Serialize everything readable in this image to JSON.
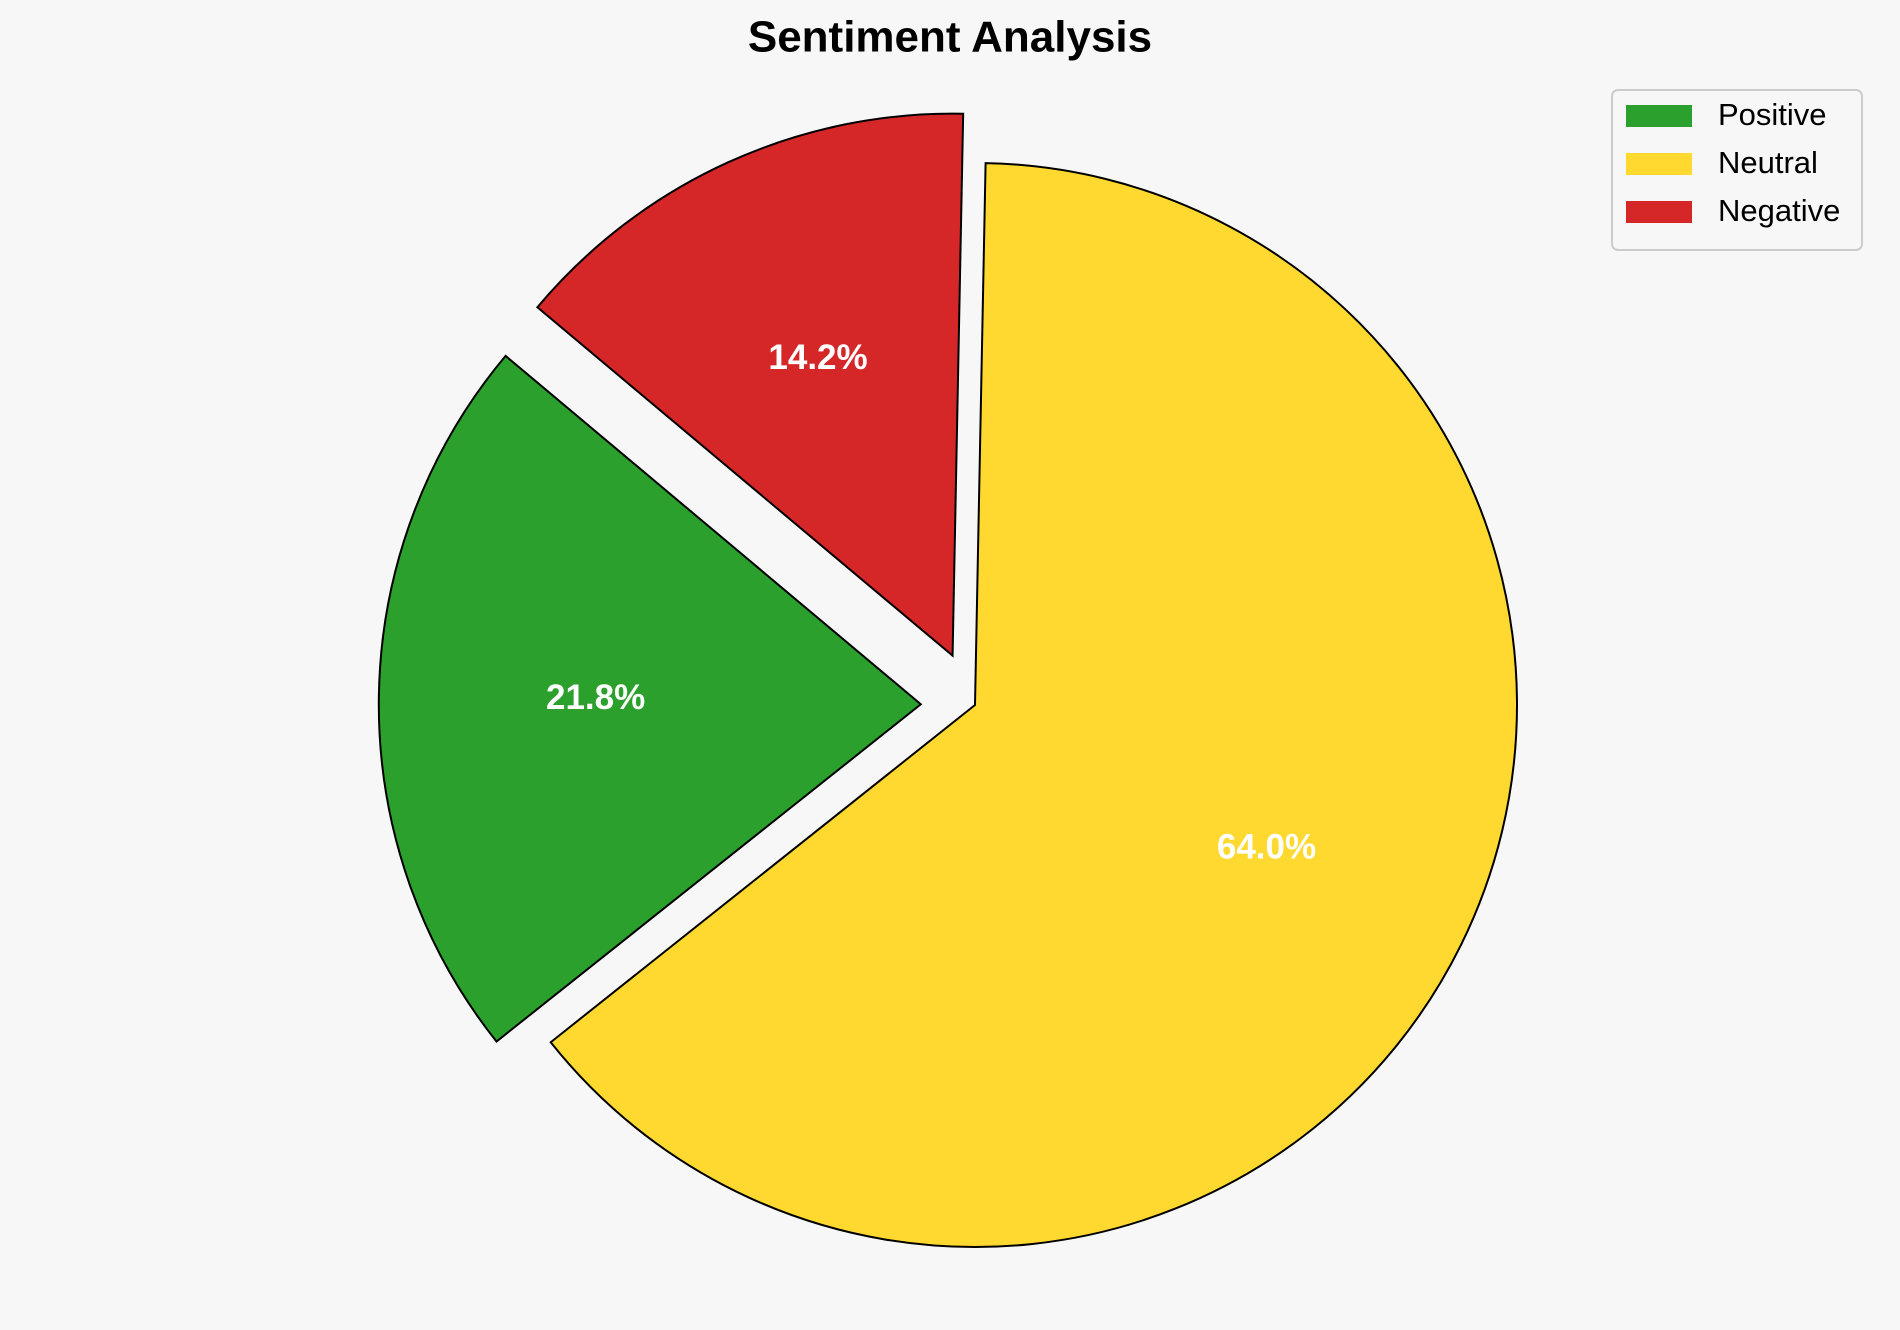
{
  "chart_data": {
    "type": "pie",
    "title": "Sentiment Analysis",
    "categories": [
      "Positive",
      "Neutral",
      "Negative"
    ],
    "values": [
      21.8,
      64.0,
      14.2
    ],
    "value_labels": [
      "21.8%",
      "64.0%",
      "14.2%"
    ],
    "colors": [
      "#2ca02c",
      "#ffd92f",
      "#d62728"
    ],
    "explode": [
      0.1,
      0,
      0.1
    ],
    "startangle": 140,
    "legend": "upper right"
  }
}
